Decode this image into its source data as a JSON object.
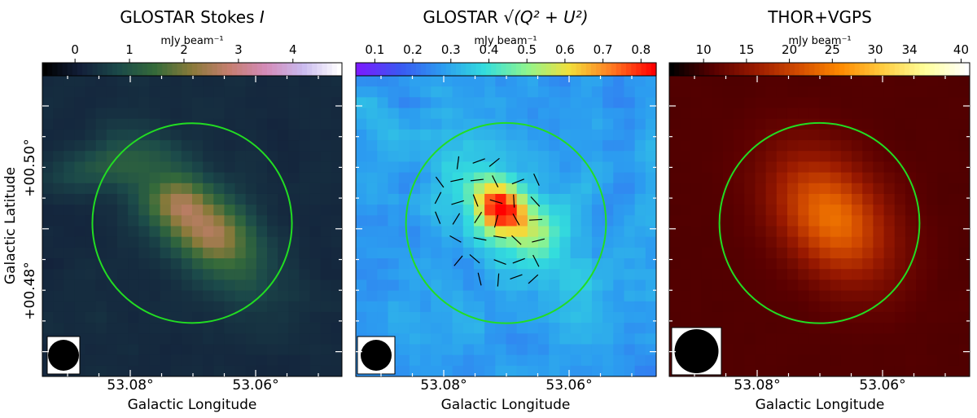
{
  "chart_data": [
    {
      "type": "heatmap",
      "title_prefix": "GLOSTAR Stokes ",
      "title_symbol": "I",
      "colorbar": {
        "label": "mJy beam⁻¹",
        "ticks": [
          "0",
          "1",
          "2",
          "3",
          "4"
        ],
        "tick_values": [
          0,
          1,
          2,
          3,
          4
        ],
        "range": [
          -0.6,
          4.9
        ],
        "colormap": [
          "#000000",
          "#13203b",
          "#1b4a4a",
          "#356b3a",
          "#8a7a3a",
          "#c57e6f",
          "#d48bb8",
          "#c9b9ee",
          "#ffffff"
        ]
      },
      "xlabel": "Galactic Longitude",
      "ylabel": "Galactic Latitude",
      "xticks": [
        "53.08°",
        "53.06°"
      ],
      "yticks": [
        "+00.50°",
        "+00.48°"
      ],
      "circle_color": "#22dd22",
      "source": {
        "peak": 2.9,
        "background": 0.25
      }
    },
    {
      "type": "heatmap",
      "title_prefix": "GLOSTAR ",
      "title_symbol": "√(Q² + U²)",
      "colorbar": {
        "label": "mJy beam⁻¹",
        "ticks": [
          "0.1",
          "0.2",
          "0.3",
          "0.4",
          "0.5",
          "0.6",
          "0.7",
          "0.8"
        ],
        "tick_values": [
          0.1,
          0.2,
          0.3,
          0.4,
          0.5,
          0.6,
          0.7,
          0.8
        ],
        "range": [
          0.05,
          0.84
        ],
        "colormap": [
          "#7a1cff",
          "#3a58f2",
          "#2c9cf0",
          "#33dddd",
          "#8ff58e",
          "#f2df3c",
          "#ff7b22",
          "#ff0000"
        ]
      },
      "xticks": [
        "53.08°",
        "53.06°"
      ],
      "polarization_vectors": true,
      "circle_color": "#22dd22",
      "source": {
        "peak": 0.72,
        "background": 0.28
      }
    },
    {
      "type": "heatmap",
      "title": "THOR+VGPS",
      "colorbar": {
        "label": "mJy beam⁻¹",
        "ticks": [
          "10",
          "15",
          "20",
          "25",
          "30",
          "34",
          "40"
        ],
        "tick_values": [
          10,
          15,
          20,
          25,
          30,
          34,
          40
        ],
        "range": [
          6,
          41
        ],
        "colormap": [
          "#000000",
          "#5a0000",
          "#9a1a00",
          "#d24b00",
          "#ff8a00",
          "#ffcc40",
          "#ffff9a",
          "#ffffff"
        ]
      },
      "xlabel": "Galactic Longitude",
      "xticks": [
        "53.08°",
        "53.06°"
      ],
      "circle_color": "#22dd22",
      "source": {
        "peak": 24,
        "background": 10.5
      }
    }
  ]
}
